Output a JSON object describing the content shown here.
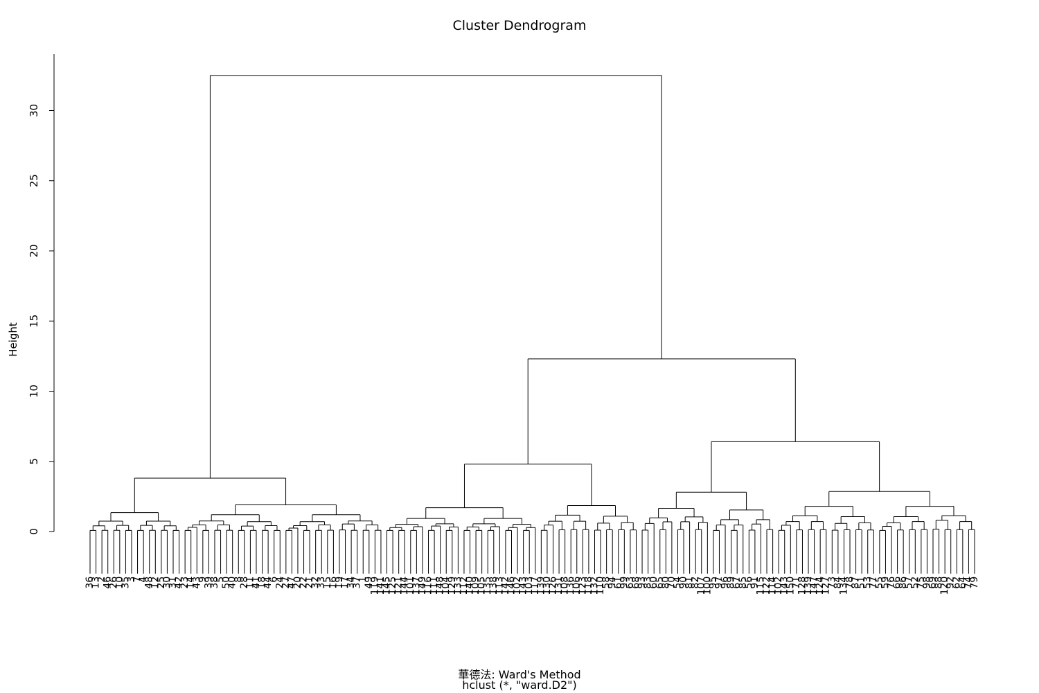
{
  "chart_data": {
    "type": "dendrogram",
    "title": "Cluster Dendrogram",
    "ylabel": "Height",
    "xlabel_lines": [
      "華德法: Ward's Method",
      "hclust (*, \"ward.D2\")"
    ],
    "ylim": [
      0,
      32.5
    ],
    "yticks": [
      0,
      5,
      10,
      15,
      20,
      25,
      30
    ],
    "leaves": [
      "36",
      "13",
      "2",
      "46",
      "26",
      "10",
      "35",
      "3",
      "7",
      "4",
      "48",
      "12",
      "25",
      "30",
      "31",
      "42",
      "23",
      "14",
      "43",
      "9",
      "39",
      "38",
      "5",
      "50",
      "40",
      "8",
      "28",
      "11",
      "41",
      "18",
      "44",
      "6",
      "24",
      "27",
      "47",
      "20",
      "22",
      "21",
      "32",
      "33",
      "15",
      "16",
      "19",
      "17",
      "34",
      "37",
      "1",
      "49",
      "119",
      "141",
      "145",
      "125",
      "121",
      "144",
      "101",
      "137",
      "149",
      "116",
      "111",
      "148",
      "104",
      "129",
      "133",
      "112",
      "140",
      "109",
      "105",
      "135",
      "138",
      "113",
      "142",
      "146",
      "102",
      "143",
      "103",
      "117",
      "139",
      "130",
      "126",
      "131",
      "108",
      "136",
      "106",
      "123",
      "118",
      "132",
      "110",
      "58",
      "94",
      "61",
      "99",
      "63",
      "68",
      "93",
      "83",
      "60",
      "65",
      "80",
      "70",
      "54",
      "90",
      "81",
      "82",
      "107",
      "100",
      "95",
      "97",
      "96",
      "89",
      "67",
      "85",
      "56",
      "91",
      "115",
      "122",
      "114",
      "102",
      "143",
      "150",
      "71",
      "128",
      "139",
      "147",
      "124",
      "127",
      "73",
      "84",
      "134",
      "78",
      "87",
      "51",
      "53",
      "77",
      "55",
      "59",
      "76",
      "66",
      "86",
      "57",
      "52",
      "75",
      "98",
      "69",
      "88",
      "120",
      "92",
      "62",
      "64",
      "74",
      "79"
    ],
    "merge_heights_top": [
      32.5,
      12.3,
      6.4,
      4.8,
      3.8
    ],
    "axis_color": "#000000",
    "line_color": "#000000"
  }
}
